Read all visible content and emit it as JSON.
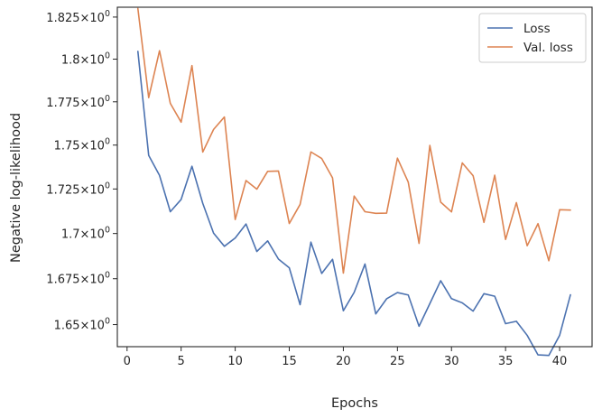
{
  "chart_data": {
    "type": "line",
    "xlabel": "Epochs",
    "ylabel": "Negative log-likelihood",
    "xlim": [
      -0.9,
      43
    ],
    "ylim": [
      1.6381,
      1.8309
    ],
    "y_scale": "log",
    "grid": false,
    "legend_position": "top-right",
    "x_ticks": [
      0,
      5,
      10,
      15,
      20,
      25,
      30,
      35,
      40
    ],
    "x_tick_labels": [
      "0",
      "5",
      "10",
      "15",
      "20",
      "25",
      "30",
      "35",
      "40"
    ],
    "y_ticks": [
      1.65,
      1.675,
      1.7,
      1.725,
      1.75,
      1.775,
      1.8,
      1.825
    ],
    "y_tick_mantissas": [
      "1.65",
      "1.675",
      "1.7",
      "1.725",
      "1.75",
      "1.775",
      "1.8",
      "1.825"
    ],
    "y_tick_base": "10",
    "y_tick_exponent": "0",
    "y_tick_times": "×",
    "x": [
      1,
      2,
      3,
      4,
      5,
      6,
      7,
      8,
      9,
      10,
      11,
      12,
      13,
      14,
      15,
      16,
      17,
      18,
      19,
      20,
      21,
      22,
      23,
      24,
      25,
      26,
      27,
      28,
      29,
      30,
      31,
      32,
      33,
      34,
      35,
      36,
      37,
      38,
      39,
      40,
      41
    ],
    "series": [
      {
        "name": "Loss",
        "color": "#4c72b0",
        "values": [
          1.8046,
          1.7441,
          1.7327,
          1.7122,
          1.7191,
          1.7379,
          1.7169,
          1.7002,
          1.6929,
          1.6975,
          1.7053,
          1.69,
          1.6959,
          1.6858,
          1.681,
          1.6608,
          1.6952,
          1.6779,
          1.6857,
          1.6575,
          1.6675,
          1.6831,
          1.6558,
          1.664,
          1.6674,
          1.6661,
          1.6491,
          1.6614,
          1.6739,
          1.6641,
          1.6618,
          1.6573,
          1.6668,
          1.6654,
          1.6505,
          1.6518,
          1.6442,
          1.6337,
          1.6334,
          1.6442,
          1.6662
        ]
      },
      {
        "name": "Val. loss",
        "color": "#dd8452",
        "values": [
          1.8301,
          1.7774,
          1.805,
          1.7741,
          1.7632,
          1.7962,
          1.746,
          1.759,
          1.7662,
          1.7078,
          1.7298,
          1.7249,
          1.735,
          1.7352,
          1.7056,
          1.7163,
          1.7461,
          1.7423,
          1.7313,
          1.6781,
          1.721,
          1.7122,
          1.7113,
          1.7114,
          1.7425,
          1.7289,
          1.6945,
          1.7498,
          1.7176,
          1.7121,
          1.7398,
          1.7325,
          1.7062,
          1.7328,
          1.6967,
          1.7173,
          1.6932,
          1.7055,
          1.6849,
          1.7133,
          1.7131
        ]
      }
    ]
  }
}
